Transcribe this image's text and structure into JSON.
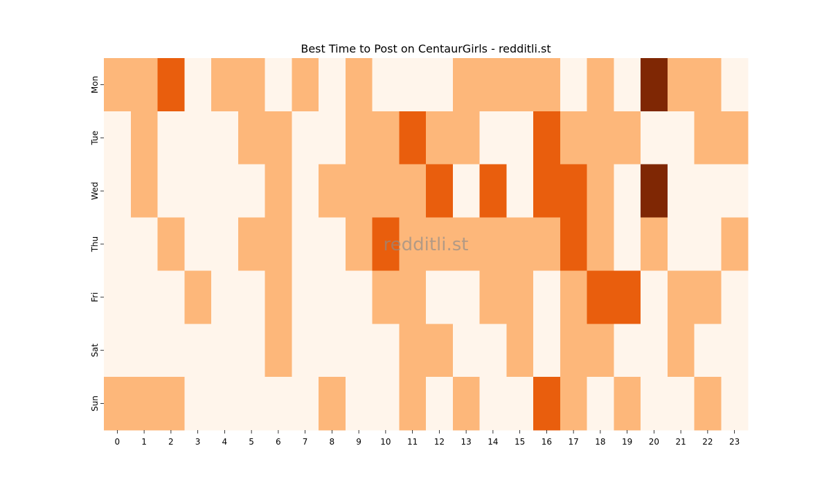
{
  "chart_data": {
    "type": "heatmap",
    "title": "Best Time to Post on CentaurGirls - redditli.st",
    "xlabel": "",
    "ylabel": "",
    "x_categories": [
      "0",
      "1",
      "2",
      "3",
      "4",
      "5",
      "6",
      "7",
      "8",
      "9",
      "10",
      "11",
      "12",
      "13",
      "14",
      "15",
      "16",
      "17",
      "18",
      "19",
      "20",
      "21",
      "22",
      "23"
    ],
    "y_categories": [
      "Mon",
      "Tue",
      "Wed",
      "Thu",
      "Fri",
      "Sat",
      "Sun"
    ],
    "levels": [
      [
        1,
        1,
        2,
        0,
        1,
        1,
        0,
        1,
        0,
        1,
        0,
        0,
        0,
        1,
        1,
        1,
        1,
        0,
        1,
        0,
        3,
        1,
        1,
        0
      ],
      [
        0,
        1,
        0,
        0,
        0,
        1,
        1,
        0,
        0,
        1,
        1,
        2,
        1,
        1,
        0,
        0,
        2,
        1,
        1,
        1,
        0,
        0,
        1,
        1
      ],
      [
        0,
        1,
        0,
        0,
        0,
        0,
        1,
        0,
        1,
        1,
        1,
        1,
        2,
        0,
        2,
        0,
        2,
        2,
        1,
        0,
        3,
        0,
        0,
        0
      ],
      [
        0,
        0,
        1,
        0,
        0,
        1,
        1,
        0,
        0,
        1,
        2,
        1,
        1,
        1,
        1,
        1,
        1,
        2,
        1,
        0,
        1,
        0,
        0,
        1
      ],
      [
        0,
        0,
        0,
        1,
        0,
        0,
        1,
        0,
        0,
        0,
        1,
        1,
        0,
        0,
        1,
        1,
        0,
        1,
        2,
        2,
        0,
        1,
        1,
        0
      ],
      [
        0,
        0,
        0,
        0,
        0,
        0,
        1,
        0,
        0,
        0,
        0,
        1,
        1,
        0,
        0,
        1,
        0,
        1,
        1,
        0,
        0,
        1,
        0,
        0
      ],
      [
        1,
        1,
        1,
        0,
        0,
        0,
        0,
        0,
        1,
        0,
        0,
        1,
        0,
        1,
        0,
        0,
        2,
        1,
        0,
        1,
        0,
        0,
        1,
        0
      ]
    ],
    "colorscale": [
      "#fff5eb",
      "#fdb77a",
      "#e95e0d",
      "#7f2704"
    ],
    "watermark": "redditli.st",
    "grid": false,
    "legend": "none"
  }
}
